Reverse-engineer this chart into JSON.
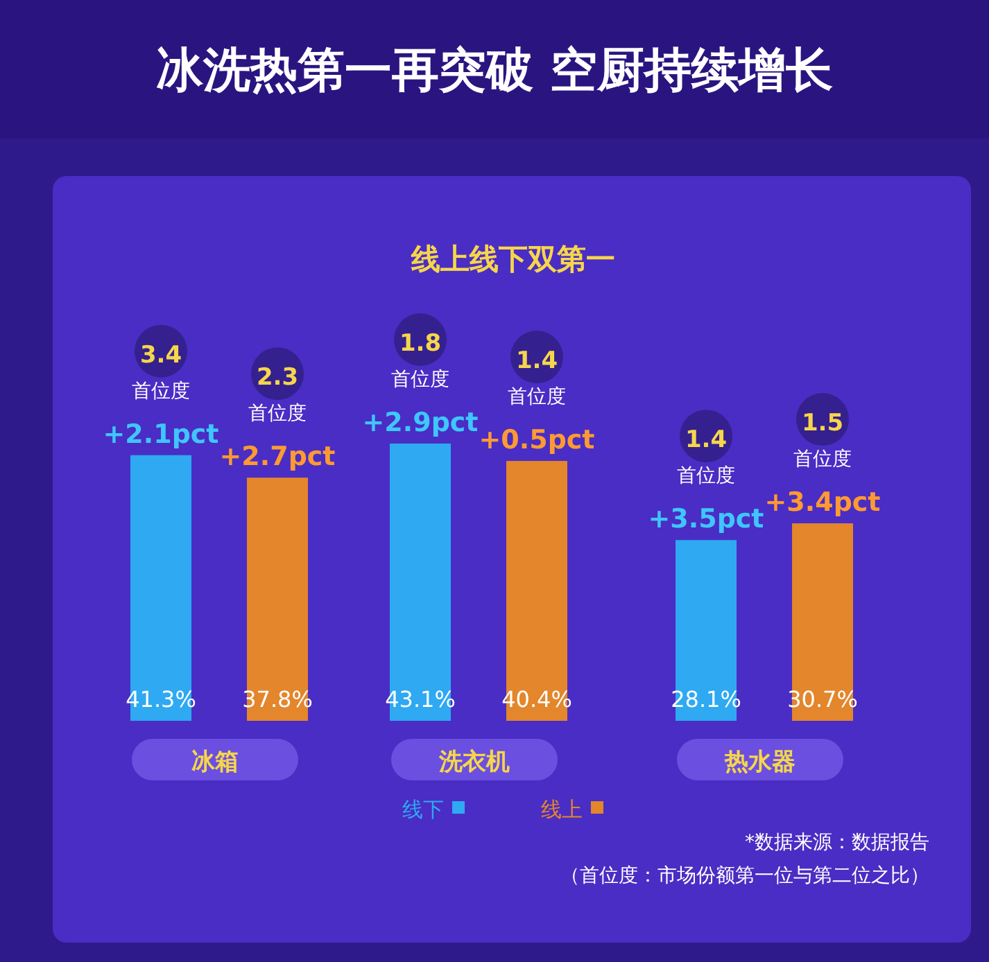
{
  "chart_data": {
    "type": "bar",
    "title": "冰洗热第一再突破 空厨持续增长",
    "subtitle": "线上线下双第一",
    "categories": [
      "冰箱",
      "洗衣机",
      "热水器"
    ],
    "series": [
      {
        "name": "线下",
        "color": "#2ea9f2",
        "values": [
          41.3,
          43.1,
          28.1
        ],
        "value_labels": [
          "41.3%",
          "43.1%",
          "28.1%"
        ]
      },
      {
        "name": "线上",
        "color": "#e3862c",
        "values": [
          37.8,
          40.4,
          30.7
        ],
        "value_labels": [
          "37.8%",
          "40.4%",
          "30.7%"
        ]
      }
    ],
    "legend": "bottom",
    "annotations": [
      "+2.1pct",
      "首位度",
      "3.4",
      "+2.7pct",
      "首位度",
      "2.3",
      "+2.9pct",
      "首位度",
      "1.8",
      "+0.5pct",
      "首位度",
      "1.4",
      "+3.5pct",
      "首位度",
      "1.4",
      "+3.4pct",
      "首位度",
      "1.5",
      "*数据来源：数据报告",
      "（首位度：市场份额第一位与第二位之比）"
    ]
  }
}
